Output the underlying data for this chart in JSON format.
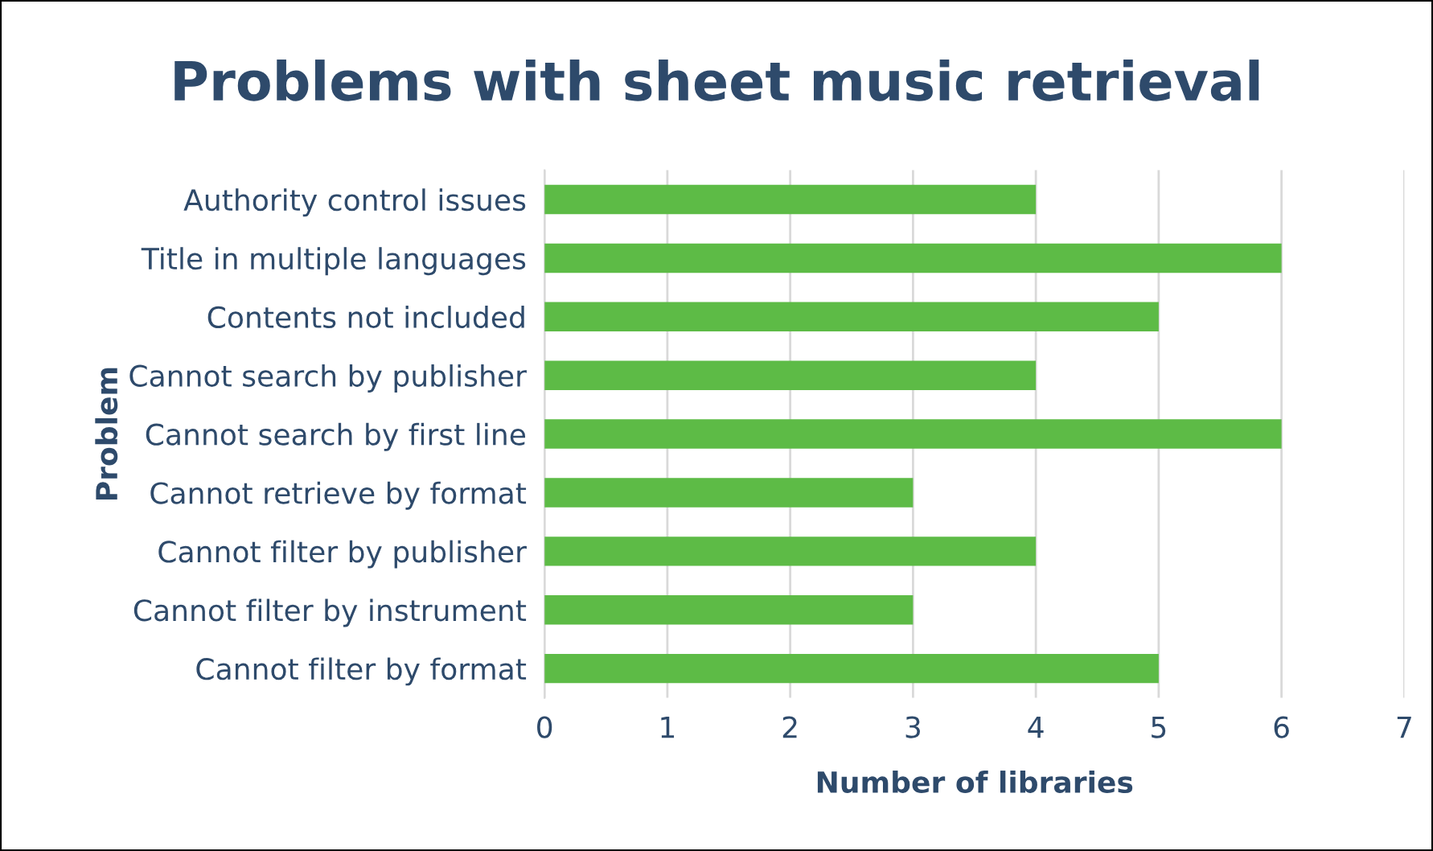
{
  "chart_data": {
    "type": "bar",
    "orientation": "horizontal",
    "title": "Problems with sheet music retrieval",
    "xlabel": "Number of libraries",
    "ylabel": "Problem",
    "categories": [
      "Authority control issues",
      "Title in multiple languages",
      "Contents not included",
      "Cannot search by publisher",
      "Cannot search by first line",
      "Cannot retrieve by format",
      "Cannot filter by publisher",
      "Cannot filter by instrument",
      "Cannot filter by format"
    ],
    "values": [
      4,
      6,
      5,
      4,
      6,
      3,
      4,
      3,
      5
    ],
    "color": "#5dbb46",
    "xlim": [
      0,
      7
    ],
    "xticks": [
      0,
      1,
      2,
      3,
      4,
      5,
      6,
      7
    ],
    "grid": "x"
  }
}
